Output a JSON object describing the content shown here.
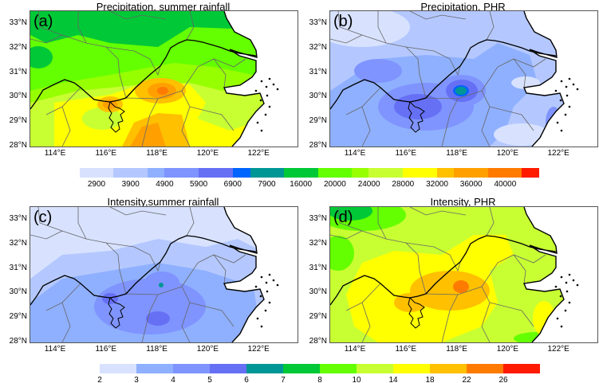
{
  "panels": [
    {
      "label": "(a)",
      "title": "Precipitation, summer rainfall"
    },
    {
      "label": "(b)",
      "title": "Precipitation, PHR"
    },
    {
      "label": "(c)",
      "title": "Intensity,summer rainfall"
    },
    {
      "label": "(d)",
      "title": "Intensity, PHR"
    }
  ],
  "lat_ticks": [
    "33°N",
    "32°N",
    "31°N",
    "30°N",
    "29°N",
    "28°N"
  ],
  "lon_ticks": [
    "114°E",
    "116°E",
    "118°E",
    "120°E",
    "122°E"
  ],
  "colorbar_precip": {
    "labels": [
      "2900",
      "3900",
      "4900",
      "5900",
      "6900",
      "7900",
      "16000",
      "20000",
      "24000",
      "28000",
      "32000",
      "36000",
      "40000"
    ],
    "colors": [
      "#d8e2ff",
      "#b4c8ff",
      "#8fb0ff",
      "#7f94ff",
      "#6670f5",
      "#0064ff",
      "#009696",
      "#00c837",
      "#64ff00",
      "#96ff00",
      "#c8ff32",
      "#ffff00",
      "#ffc000",
      "#ffa000",
      "#ff7b00",
      "#ff1a00"
    ]
  },
  "colorbar_intensity": {
    "labels": [
      "2",
      "3",
      "4",
      "5",
      "6",
      "7",
      "8",
      "10",
      "14",
      "18",
      "22",
      "26"
    ],
    "colors": [
      "#d8e2ff",
      "#8fb0ff",
      "#7f94ff",
      "#6670f5",
      "#009696",
      "#00c837",
      "#64ff00",
      "#c8ff32",
      "#ffff00",
      "#ffc000",
      "#ff7b00",
      "#ff1a00"
    ]
  }
}
